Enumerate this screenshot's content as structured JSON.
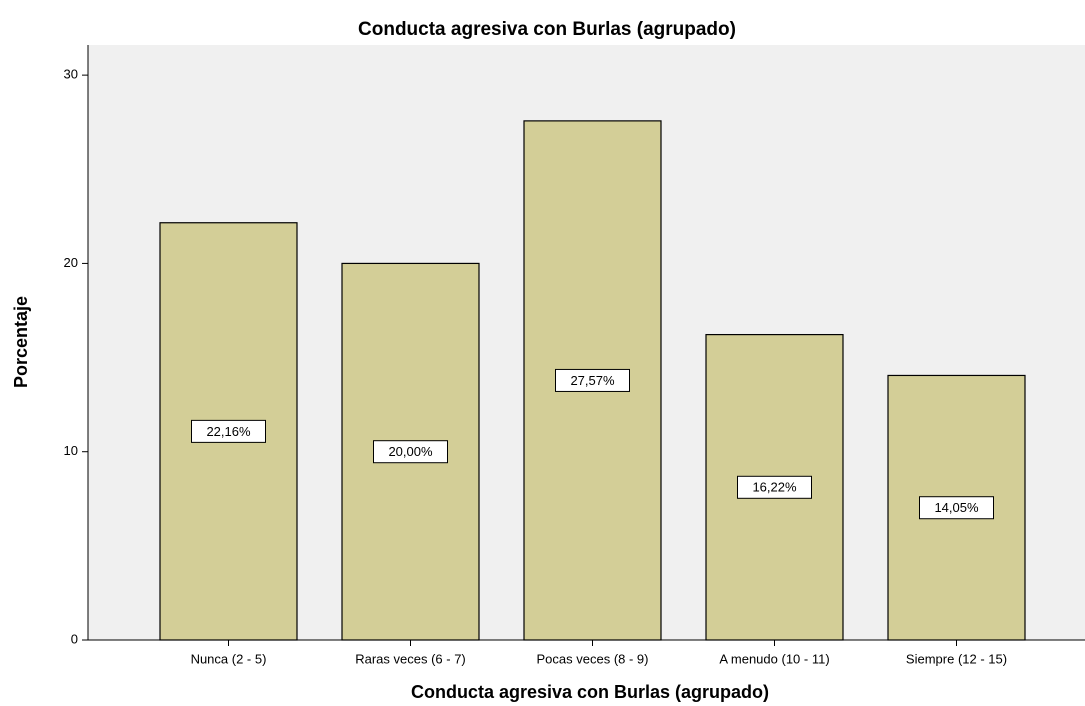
{
  "chart_data": {
    "type": "bar",
    "title": "Conducta agresiva con Burlas (agrupado)",
    "x_label": "Conducta agresiva con Burlas (agrupado)",
    "y_label": "Porcentaje",
    "categories": [
      "Nunca (2 - 5)",
      "Raras veces (6 - 7)",
      "Pocas veces (8 - 9)",
      "A menudo (10 - 11)",
      "Siempre (12 - 15)"
    ],
    "values": [
      22.16,
      20.0,
      27.57,
      16.22,
      14.05
    ],
    "value_labels": [
      "22,16%",
      "20,00%",
      "27,57%",
      "16,22%",
      "14,05%"
    ],
    "color": "#d3ce97",
    "ylim": [
      0,
      31.6
    ],
    "yticks": [
      0,
      10,
      20,
      30
    ],
    "grid": false
  }
}
